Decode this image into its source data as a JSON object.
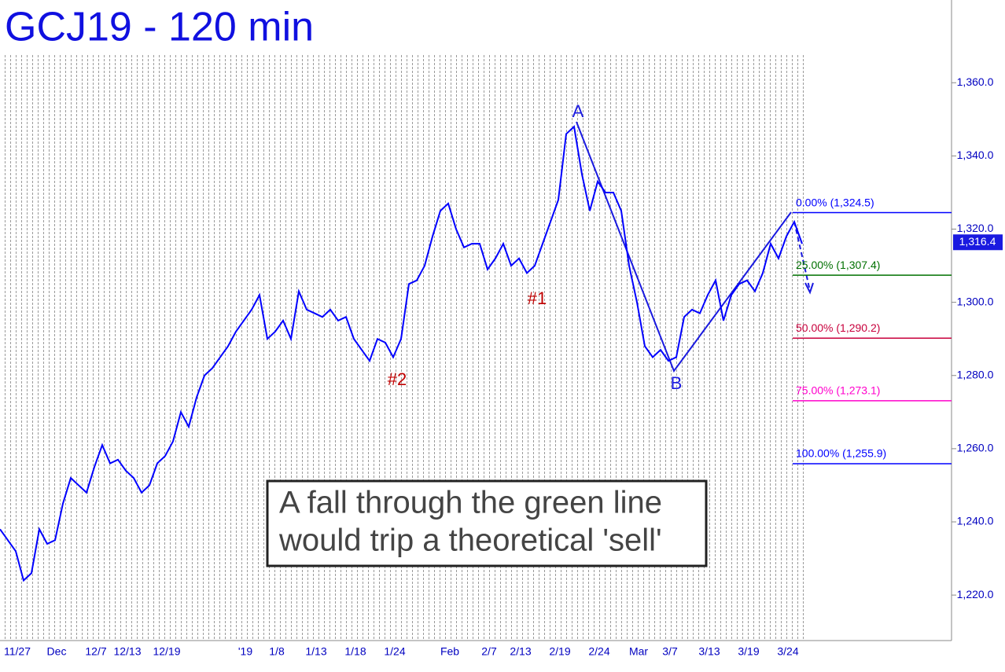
{
  "chart_data": {
    "type": "line",
    "title": "GCJ19 - 120 min",
    "categories": [
      null,
      null,
      "11/27",
      null,
      null,
      null,
      null,
      "Dec",
      null,
      null,
      null,
      null,
      "12/7",
      null,
      null,
      null,
      "12/13",
      null,
      null,
      null,
      null,
      "12/19",
      null,
      null,
      null,
      null,
      null,
      null,
      null,
      null,
      null,
      "'19",
      null,
      null,
      null,
      "1/8",
      null,
      null,
      null,
      null,
      "1/13",
      null,
      null,
      null,
      null,
      "1/18",
      null,
      null,
      null,
      null,
      "1/24",
      null,
      null,
      null,
      null,
      null,
      null,
      "Feb",
      null,
      null,
      null,
      null,
      "2/7",
      null,
      null,
      null,
      "2/13",
      null,
      null,
      null,
      null,
      "2/19",
      null,
      null,
      null,
      null,
      "2/24",
      null,
      null,
      null,
      null,
      "Mar",
      null,
      null,
      null,
      "3/7",
      null,
      null,
      null,
      null,
      "3/13",
      null,
      null,
      null,
      null,
      "3/19",
      null,
      null,
      null,
      null,
      "3/24",
      null,
      null
    ],
    "series": [
      {
        "name": "GCJ19",
        "color": "#0000ff",
        "values": [
          1238,
          1235,
          1232,
          1224,
          1226,
          1238,
          1234,
          1235,
          1245,
          1252,
          1250,
          1248,
          1255,
          1261,
          1256,
          1257,
          1254,
          1252,
          1248,
          1250,
          1256,
          1258,
          1262,
          1270,
          1266,
          1274,
          1280,
          1282,
          1285,
          1288,
          1292,
          1295,
          1298,
          1302,
          1290,
          1292,
          1295,
          1290,
          1303,
          1298,
          1297,
          1296,
          1298,
          1295,
          1296,
          1290,
          1287,
          1284,
          1290,
          1289,
          1285,
          1290,
          1305,
          1306,
          1310,
          1318,
          1325,
          1327,
          1320,
          1315,
          1316,
          1316,
          1309,
          1312,
          1316,
          1310,
          1312,
          1308,
          1310,
          1316,
          1322,
          1328,
          1346,
          1348,
          1335,
          1325,
          1333,
          1330,
          1330,
          1325,
          1310,
          1300,
          1288,
          1285,
          1287,
          1284,
          1285,
          1296,
          1298,
          1297,
          1302,
          1306,
          1295,
          1302,
          1305,
          1306,
          1303,
          1308,
          1316,
          1312,
          1318,
          1322,
          1316
        ]
      }
    ],
    "ylim": [
      1208,
      1368
    ],
    "yticks": [
      {
        "value": 1220,
        "label": "1,220.0"
      },
      {
        "value": 1240,
        "label": "1,240.0"
      },
      {
        "value": 1260,
        "label": "1,260.0"
      },
      {
        "value": 1280,
        "label": "1,280.0"
      },
      {
        "value": 1300,
        "label": "1,300.0"
      },
      {
        "value": 1320,
        "label": "1,320.0"
      },
      {
        "value": 1340,
        "label": "1,340.0"
      },
      {
        "value": 1360,
        "label": "1,360.0"
      }
    ],
    "last_price": {
      "value": 1316.4,
      "label": "1,316.4"
    },
    "fib_levels": [
      {
        "label": "0.00% (1,324.5)",
        "value": 1324.5,
        "color": "#0000ff"
      },
      {
        "label": "25.00% (1,307.4)",
        "value": 1307.4,
        "color": "#007000"
      },
      {
        "label": "50.00% (1,290.2)",
        "value": 1290.2,
        "color": "#c8003c"
      },
      {
        "label": "75.00% (1,273.1)",
        "value": 1273.1,
        "color": "#ff00cc"
      },
      {
        "label": "100.00% (1,255.9)",
        "value": 1255.9,
        "color": "#0000ff"
      }
    ],
    "point_labels": {
      "a": "A",
      "b": "B",
      "one": "#1",
      "two": "#2"
    },
    "annotation": [
      "A fall through the green line",
      "would trip a theoretical 'sell'"
    ]
  }
}
